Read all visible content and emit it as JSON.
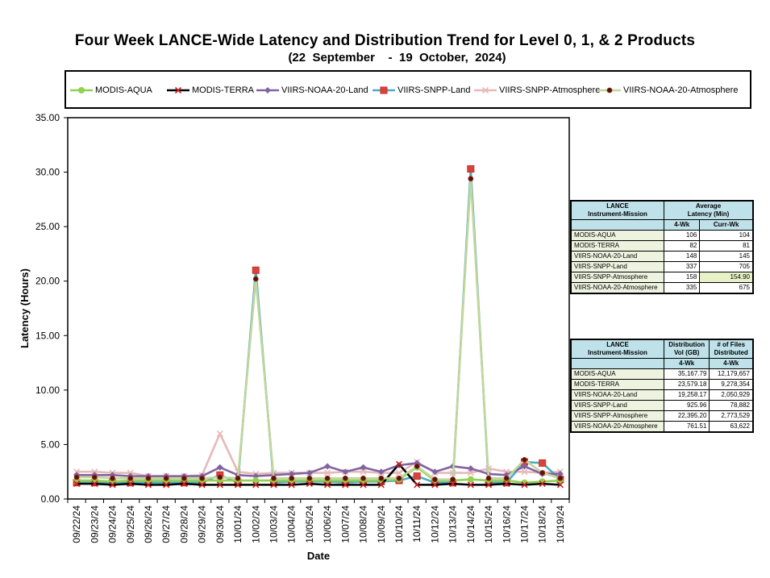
{
  "title": "Four Week LANCE-Wide Latency and Distribution Trend for Level 0, 1, & 2 Products",
  "subtitle": "(22  September    -  19  October,  2024)",
  "chart_data": {
    "type": "line",
    "title": "Four Week LANCE-Wide Latency and Distribution Trend for Level 0, 1, & 2 Products",
    "subtitle": "(22  September    -  19  October,  2024)",
    "xlabel": "Date",
    "ylabel": "Latency (Hours)",
    "ylim": [
      0,
      35
    ],
    "yticks": [
      "0.00",
      "5.00",
      "10.00",
      "15.00",
      "20.00",
      "25.00",
      "30.00",
      "35.00"
    ],
    "grid": false,
    "legend_position": "top",
    "categories": [
      "09/22/24",
      "09/23/24",
      "09/24/24",
      "09/25/24",
      "09/26/24",
      "09/27/24",
      "09/28/24",
      "09/29/24",
      "09/30/24",
      "10/01/24",
      "10/02/24",
      "10/03/24",
      "10/04/24",
      "10/05/24",
      "10/06/24",
      "10/07/24",
      "10/08/24",
      "10/09/24",
      "10/10/24",
      "10/11/24",
      "10/12/24",
      "10/13/24",
      "10/14/24",
      "10/15/24",
      "10/16/24",
      "10/17/24",
      "10/18/24",
      "10/19/24"
    ],
    "series": [
      {
        "name": "MODIS-AQUA",
        "color": "#92d050",
        "marker": "circle",
        "values": [
          1.7,
          1.7,
          1.6,
          1.7,
          1.7,
          1.7,
          1.7,
          1.7,
          1.7,
          1.7,
          1.7,
          1.7,
          1.7,
          1.7,
          1.7,
          1.7,
          1.7,
          1.7,
          1.8,
          2.9,
          1.7,
          1.7,
          1.8,
          1.7,
          1.7,
          1.5,
          1.6,
          1.7
        ]
      },
      {
        "name": "MODIS-TERRA",
        "color": "#000000",
        "marker": "x",
        "values": [
          1.4,
          1.4,
          1.3,
          1.4,
          1.3,
          1.3,
          1.4,
          1.3,
          1.3,
          1.3,
          1.3,
          1.3,
          1.3,
          1.4,
          1.3,
          1.3,
          1.3,
          1.3,
          3.2,
          1.3,
          1.3,
          1.4,
          1.3,
          1.3,
          1.4,
          1.3,
          1.4,
          1.3
        ]
      },
      {
        "name": "VIIRS-NOAA-20-Land",
        "color": "#8064a2",
        "marker": "diamond",
        "values": [
          2.2,
          2.2,
          2.2,
          2.1,
          2.1,
          2.1,
          2.1,
          2.1,
          2.9,
          2.2,
          2.1,
          2.2,
          2.3,
          2.4,
          3.0,
          2.5,
          2.9,
          2.5,
          3.1,
          3.3,
          2.5,
          3.0,
          2.8,
          2.3,
          2.2,
          3.0,
          2.3,
          2.3
        ]
      },
      {
        "name": "VIIRS-SNPP-Land",
        "color": "#4bacc6",
        "marker": "square",
        "values": [
          1.5,
          1.5,
          1.5,
          1.5,
          1.5,
          1.5,
          1.5,
          1.5,
          2.2,
          1.5,
          21.0,
          1.5,
          1.6,
          1.6,
          1.6,
          1.5,
          1.6,
          1.6,
          1.7,
          2.1,
          1.5,
          1.5,
          30.3,
          1.5,
          1.5,
          3.4,
          3.3,
          1.8
        ]
      },
      {
        "name": "VIIRS-SNPP-Atmosphere",
        "color": "#e6b9b8",
        "marker": "x",
        "values": [
          2.5,
          2.5,
          2.4,
          2.4,
          2.1,
          2.1,
          2.1,
          2.2,
          6.0,
          2.5,
          2.3,
          2.4,
          2.4,
          2.4,
          2.4,
          2.5,
          2.5,
          2.4,
          2.4,
          3.4,
          2.4,
          2.4,
          2.4,
          2.8,
          2.5,
          2.5,
          2.4,
          2.5
        ]
      },
      {
        "name": "VIIRS-NOAA-20-Atmosphere",
        "color": "#c3d69b",
        "marker": "dot",
        "values": [
          2.0,
          2.0,
          1.9,
          1.9,
          1.9,
          1.9,
          1.9,
          1.9,
          2.0,
          1.9,
          20.2,
          1.9,
          1.9,
          1.9,
          1.9,
          1.9,
          1.9,
          1.9,
          1.9,
          3.0,
          1.8,
          1.8,
          29.4,
          1.9,
          1.9,
          3.6,
          2.4,
          1.9
        ]
      }
    ]
  },
  "latency_table": {
    "header_left": [
      "LANCE",
      "Instrument-Mission"
    ],
    "header_right": [
      "Average",
      "Latency (Min)"
    ],
    "sub_headers": [
      "4-Wk",
      "Curr-Wk"
    ],
    "rows": [
      {
        "name": "MODIS-AQUA",
        "v1": "106",
        "v2": "104"
      },
      {
        "name": "MODIS-TERRA",
        "v1": "82",
        "v2": "81"
      },
      {
        "name": "VIIRS-NOAA-20-Land",
        "v1": "148",
        "v2": "145"
      },
      {
        "name": "VIIRS-SNPP-Land",
        "v1": "337",
        "v2": "705"
      },
      {
        "name": "VIIRS-SNPP-Atmosphere",
        "v1": "158",
        "v2": "154.90"
      },
      {
        "name": "VIIRS-NOAA-20-Atmosphere",
        "v1": "335",
        "v2": "675"
      }
    ]
  },
  "distribution_table": {
    "header_left": [
      "LANCE",
      "Instrument-Mission"
    ],
    "header_mid": [
      "Distribution",
      "Vol (GB)"
    ],
    "header_right": [
      "# of Files",
      "Distributed"
    ],
    "sub_headers": [
      "4-Wk",
      "4-Wk"
    ],
    "rows": [
      {
        "name": "MODIS-AQUA",
        "v1": "35,167.79",
        "v2": "12,179,657"
      },
      {
        "name": "MODIS-TERRA",
        "v1": "23,579.18",
        "v2": "9,278,354"
      },
      {
        "name": "VIIRS-NOAA-20-Land",
        "v1": "19,258.17",
        "v2": "2,050,929"
      },
      {
        "name": "VIIRS-SNPP-Land",
        "v1": "925.96",
        "v2": "78,882"
      },
      {
        "name": "VIIRS-SNPP-Atmosphere",
        "v1": "22,395.20",
        "v2": "2,773,529"
      },
      {
        "name": "VIIRS-NOAA-20-Atmosphere",
        "v1": "761.51",
        "v2": "63,622"
      }
    ]
  }
}
